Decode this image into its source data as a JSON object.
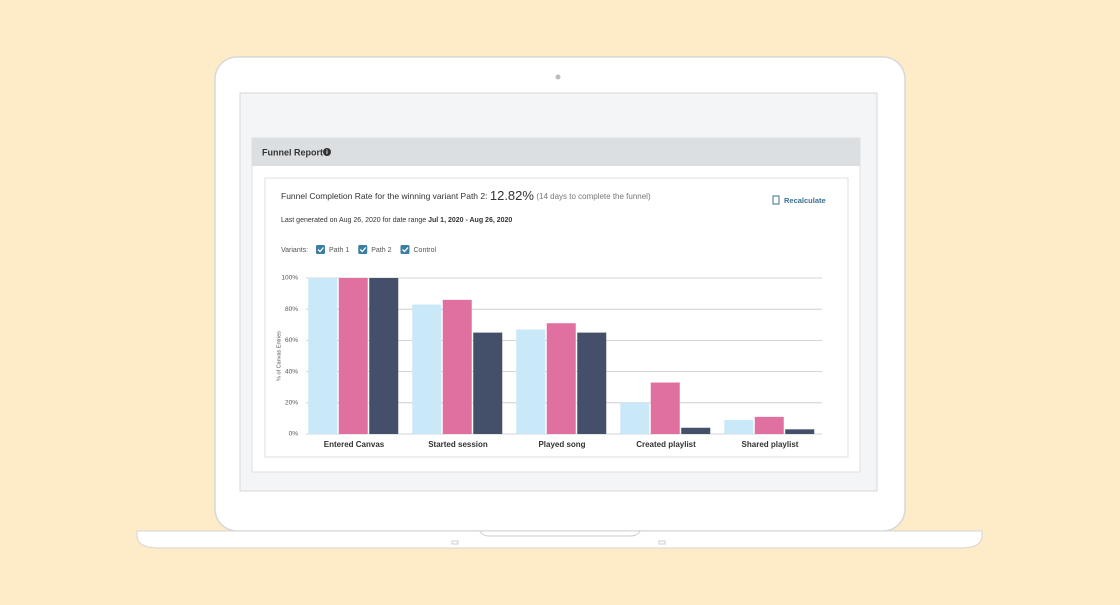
{
  "panel": {
    "title": "Funnel Report"
  },
  "card": {
    "headline": "Funnel Completion Rate for the winning variant Path 2:",
    "rate": "12.82%",
    "rate_note": "(14 days to complete the funnel)",
    "recalculate": "Recalculate",
    "generated": "Last generated on Aug 26, 2020 for date range",
    "date_range": "Jul 1, 2020 - Aug 26, 2020",
    "variants_label": "Variants:"
  },
  "chart_data": {
    "type": "bar",
    "y_label": "% of Canvas Entries",
    "categories": [
      "Entered Canvas",
      "Started session",
      "Played song",
      "Created playlist",
      "Shared playlist"
    ],
    "series": [
      {
        "name": "Path 1",
        "color": "#c9e8f8",
        "values": [
          100,
          83,
          67,
          20,
          9
        ]
      },
      {
        "name": "Path 2",
        "color": "#e0709f",
        "values": [
          100,
          86,
          71,
          33,
          11
        ]
      },
      {
        "name": "Control",
        "color": "#444f6a",
        "values": [
          100,
          65,
          65,
          4,
          3
        ]
      }
    ],
    "ylim": [
      0,
      100
    ],
    "yticks": [
      {
        "value": 0,
        "label": "0%"
      },
      {
        "value": 20,
        "label": "20%"
      },
      {
        "value": 40,
        "label": "40%"
      },
      {
        "value": 60,
        "label": "60%"
      },
      {
        "value": 80,
        "label": "80%"
      },
      {
        "value": 100,
        "label": "100%"
      }
    ],
    "grid": true
  }
}
